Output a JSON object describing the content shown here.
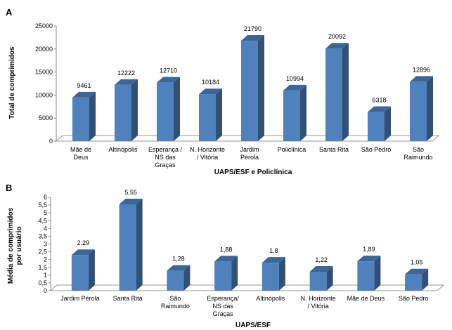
{
  "chart_data": [
    {
      "panel": "A",
      "type": "bar",
      "categories": [
        [
          "Mãe de",
          "Deus"
        ],
        [
          "Altinópolis"
        ],
        [
          "Esperança /",
          "NS das",
          "Graças"
        ],
        [
          "N. Horizonte",
          "/ Vitória"
        ],
        [
          "Jardim",
          "Pérola"
        ],
        [
          "Policlínica"
        ],
        [
          "Santa Rita"
        ],
        [
          "São Pedro"
        ],
        [
          "São",
          "Raimundo"
        ]
      ],
      "values": [
        9461,
        12222,
        12710,
        10184,
        21790,
        10994,
        20092,
        6318,
        12896
      ],
      "value_labels": [
        "9461",
        "12222",
        "12710",
        "10184",
        "21790",
        "10994",
        "20092",
        "6318",
        "12896"
      ],
      "yticks": [
        "0",
        "5000",
        "10000",
        "15000",
        "20000",
        "25000"
      ],
      "ylim": [
        0,
        25000
      ],
      "ylabel": "Total de comprimidos",
      "xlabel": "UAPS/ESF e Policlínica",
      "bar_color": "#4f81bd",
      "legend": "none",
      "grid": false
    },
    {
      "panel": "B",
      "type": "bar",
      "categories": [
        [
          "Jardim Pérola"
        ],
        [
          "Santa Rita"
        ],
        [
          "São",
          "Raimundo"
        ],
        [
          "Esperança/",
          "NS das",
          "Graças"
        ],
        [
          "Altinópolis"
        ],
        [
          "N. Horizonte",
          "/ Vitória"
        ],
        [
          "Mãe de Deus"
        ],
        [
          "São Pedro"
        ]
      ],
      "values": [
        2.29,
        5.55,
        1.28,
        1.88,
        1.8,
        1.22,
        1.89,
        1.05
      ],
      "value_labels": [
        "2,29",
        "5,55",
        "1,28",
        "1,88",
        "1,8",
        "1,22",
        "1,89",
        "1,05"
      ],
      "yticks": [
        "0",
        "0,5",
        "1",
        "1,5",
        "2",
        "2,5",
        "3",
        "3,5",
        "4",
        "4,5",
        "5",
        "5,5",
        "6"
      ],
      "ylim": [
        0,
        6
      ],
      "ylabel": [
        "Média de comprimidos",
        "por usuário"
      ],
      "xlabel": "UAPS/ESF",
      "bar_color": "#4f81bd",
      "legend": "none",
      "grid": false
    }
  ]
}
